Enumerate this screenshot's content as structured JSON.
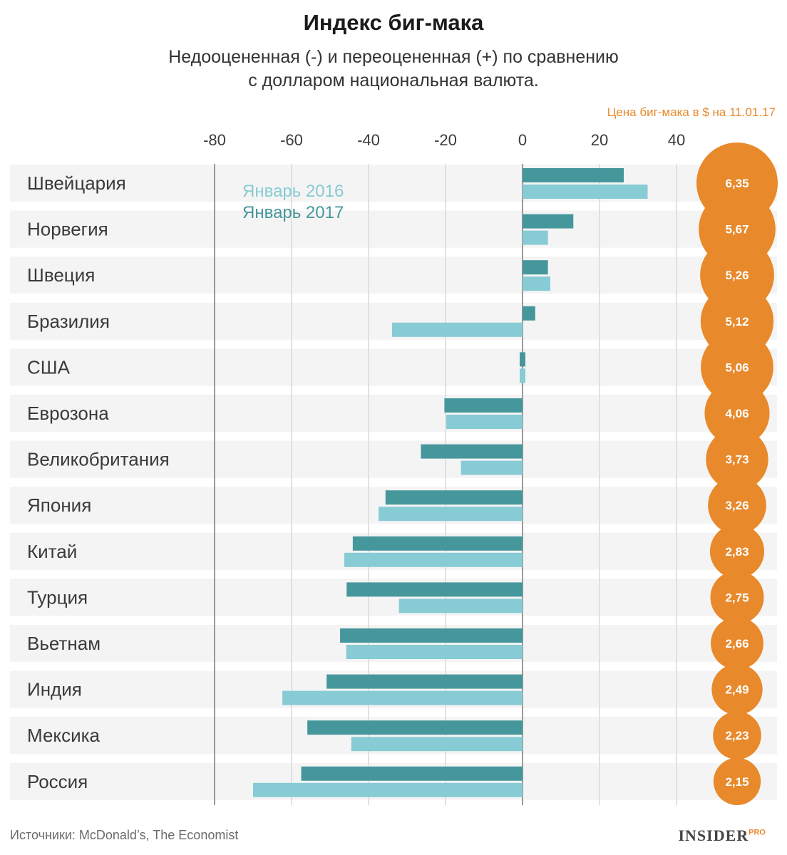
{
  "title": "Индекс биг-мака",
  "subtitle_line1": "Недооцененная (-) и переоцененная (+) по сравнению",
  "subtitle_line2": "с долларом национальная валюта.",
  "price_header": "Цена биг-мака в $ на 11.01.17",
  "source": "Источники: McDonald’s, The Economist",
  "brand": {
    "name": "INSIDER",
    "suffix": "PRO"
  },
  "colors": {
    "jan2016": "#87cbd4",
    "jan2017": "#46979b",
    "price_circle": "#e8892b",
    "row_band": "#f4f4f4",
    "grid": "#d9d9d9",
    "zero_line": "#9a9a9a"
  },
  "chart_data": {
    "type": "bar",
    "orientation": "horizontal",
    "title": "Индекс биг-мака",
    "xlabel": "",
    "ylabel": "",
    "xlim": [
      -80,
      40
    ],
    "ticks": [
      -80,
      -60,
      -40,
      -20,
      0,
      20,
      40
    ],
    "tick_labels": [
      "-80",
      "-60",
      "-40",
      "-20",
      "0",
      "20",
      "40"
    ],
    "categories": [
      "Швейцария",
      "Норвегия",
      "Швеция",
      "Бразилия",
      "США",
      "Еврозона",
      "Великобритания",
      "Япония",
      "Китай",
      "Турция",
      "Вьетнам",
      "Индия",
      "Мексика",
      "Россия"
    ],
    "series": [
      {
        "name": "Январь 2017",
        "key": "jan2017",
        "values": [
          26.3,
          13.2,
          6.6,
          3.3,
          0,
          -20.3,
          -26.4,
          -35.6,
          -44.1,
          -45.7,
          -47.4,
          -50.9,
          -55.9,
          -57.5
        ]
      },
      {
        "name": "Январь 2016",
        "key": "jan2016",
        "values": [
          32.5,
          6.6,
          7.2,
          -33.9,
          0,
          -19.8,
          -16,
          -37.4,
          -46.3,
          -32.1,
          -45.8,
          -62.4,
          -44.5,
          -70
        ]
      }
    ],
    "prices": [
      "6,35",
      "5,67",
      "5,26",
      "5,12",
      "5,06",
      "4,06",
      "3,73",
      "3,26",
      "2,83",
      "2,75",
      "2,66",
      "2,49",
      "2,23",
      "2,15"
    ],
    "price_values": [
      6.35,
      5.67,
      5.26,
      5.12,
      5.06,
      4.06,
      3.73,
      3.26,
      2.83,
      2.75,
      2.66,
      2.49,
      2.23,
      2.15
    ],
    "legend": [
      "Январь 2016",
      "Январь 2017"
    ]
  }
}
